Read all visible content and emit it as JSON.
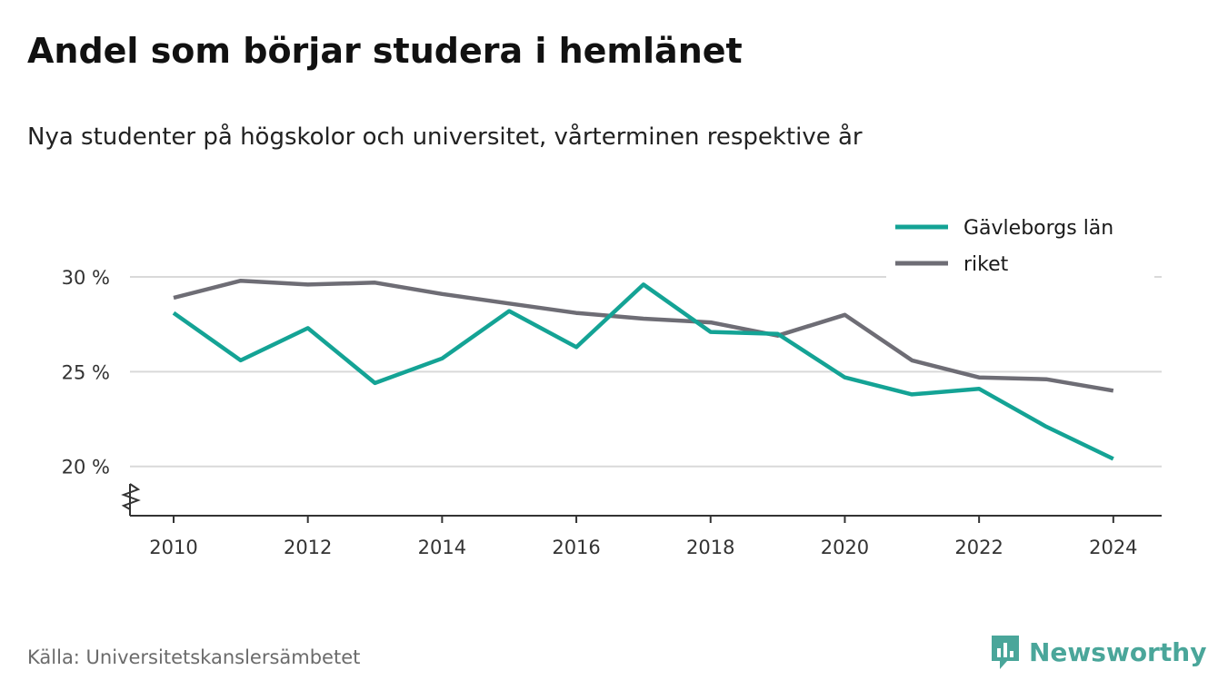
{
  "title": "Andel som börjar studera i hemlänet",
  "subtitle": "Nya studenter på högskolor och universitet, vårterminen respektive år",
  "source": "Källa: Universitetskanslersämbetet",
  "brand": "Newsworthy",
  "chart_data": {
    "type": "line",
    "x": [
      2010,
      2011,
      2012,
      2013,
      2014,
      2015,
      2016,
      2017,
      2018,
      2019,
      2020,
      2021,
      2022,
      2023,
      2024
    ],
    "series": [
      {
        "name": "Gävleborgs län",
        "color": "#14a395",
        "values": [
          28.1,
          25.6,
          27.3,
          24.4,
          25.7,
          28.2,
          26.3,
          29.6,
          27.1,
          27.0,
          24.7,
          23.8,
          24.1,
          22.1,
          20.4
        ]
      },
      {
        "name": "riket",
        "color": "#6e6d75",
        "values": [
          28.9,
          29.8,
          29.6,
          29.7,
          29.1,
          28.6,
          28.1,
          27.8,
          27.6,
          26.9,
          28.0,
          25.6,
          24.7,
          24.6,
          24.0
        ]
      }
    ],
    "xticks": [
      2010,
      2012,
      2014,
      2016,
      2018,
      2020,
      2022,
      2024
    ],
    "xtick_labels": [
      "2010",
      "2012",
      "2014",
      "2016",
      "2018",
      "2020",
      "2022",
      "2024"
    ],
    "yticks": [
      20,
      25,
      30
    ],
    "ytick_labels": [
      "20 %",
      "25 %",
      "30 %"
    ],
    "ylim": [
      17.4,
      31.2
    ],
    "xlim": [
      2009.35,
      2024.72
    ],
    "grid": true,
    "axis_break": true,
    "legend_position": "top-right"
  }
}
